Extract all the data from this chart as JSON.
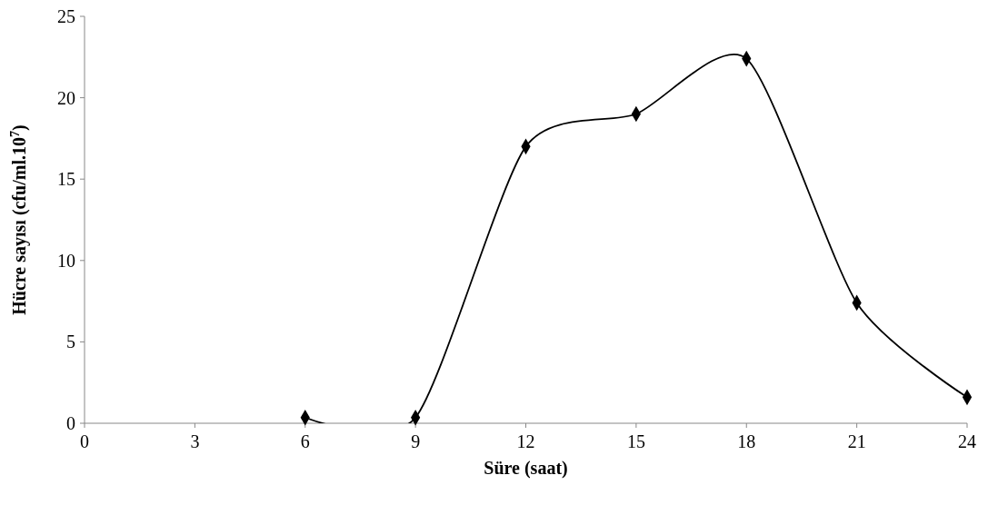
{
  "chart_data": {
    "type": "line",
    "xlabel": "Süre (saat)",
    "ylabel": "Hücre sayısı (cfu/ml.10$^{7}$)",
    "x": [
      6,
      9,
      12,
      15,
      18,
      21,
      24
    ],
    "series": [
      {
        "color": "#000000",
        "values": [
          0.35,
          0.35,
          17,
          19,
          22.4,
          7.4,
          1.6
        ]
      }
    ],
    "xlim": [
      0,
      24
    ],
    "xticks": [
      0,
      3,
      6,
      9,
      12,
      15,
      18,
      21,
      24
    ],
    "ylim": [
      0,
      25
    ],
    "yticks": [
      0,
      5,
      10,
      15,
      20,
      25
    ],
    "grid": false,
    "marker": "diamond",
    "line_style": "solid"
  }
}
